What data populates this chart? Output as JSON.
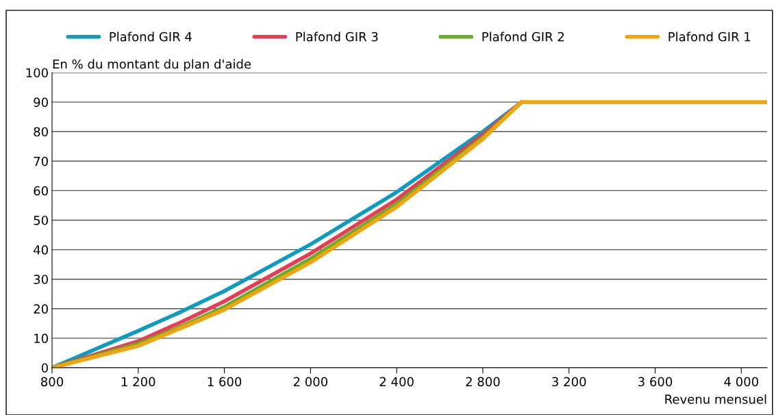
{
  "chart_data": {
    "type": "line",
    "ylabel": "En % du montant du plan d'aide",
    "xlabel": "Revenu mensuel",
    "x": [
      800,
      1200,
      1400,
      1600,
      2000,
      2400,
      2800,
      2980,
      4120
    ],
    "series": [
      {
        "name": "Plafond GIR 4",
        "color": "#0e9bbf",
        "values": [
          0,
          12.5,
          19,
          26,
          41.8,
          59.5,
          80,
          90,
          null
        ]
      },
      {
        "name": "Plafond GIR 3",
        "color": "#e63c54",
        "values": [
          0,
          9,
          15.5,
          22.5,
          38.7,
          57,
          79,
          90,
          null
        ]
      },
      {
        "name": "Plafond GIR 2",
        "color": "#6aad2a",
        "values": [
          0,
          8.1,
          14,
          20.6,
          36.9,
          55.5,
          78,
          90,
          null
        ]
      },
      {
        "name": "Plafond GIR 1",
        "color": "#f3a40b",
        "values": [
          0,
          7.4,
          13.5,
          19.7,
          35.7,
          54.5,
          77.5,
          90,
          90
        ]
      }
    ],
    "xlim": [
      800,
      4120
    ],
    "xticks": [
      {
        "value": 800,
        "label": "800"
      },
      {
        "value": 1200,
        "label": "1 200"
      },
      {
        "value": 1600,
        "label": "1 600"
      },
      {
        "value": 2000,
        "label": "2 000"
      },
      {
        "value": 2400,
        "label": "2 400"
      },
      {
        "value": 2800,
        "label": "2 800"
      },
      {
        "value": 3200,
        "label": "3 200"
      },
      {
        "value": 3600,
        "label": "3 600"
      },
      {
        "value": 4000,
        "label": "4 000"
      }
    ],
    "ylim": [
      0,
      100
    ],
    "yticks": [
      0,
      10,
      20,
      30,
      40,
      50,
      60,
      70,
      80,
      90,
      100
    ],
    "grid": "y",
    "legend": "top",
    "line_style": "solid"
  }
}
